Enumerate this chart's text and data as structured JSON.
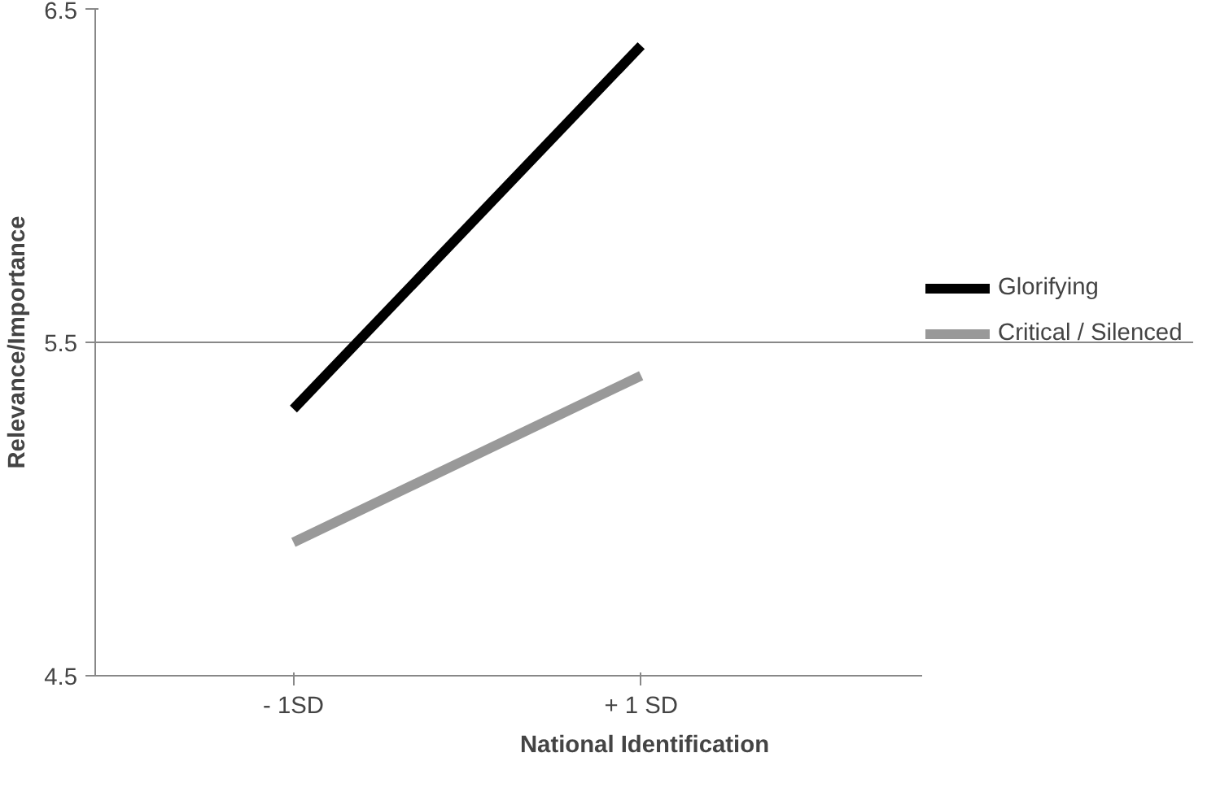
{
  "chart_data": {
    "type": "line",
    "xlabel": "National Identification",
    "ylabel": "Relevance/Importance",
    "categories": [
      "- 1SD",
      "+ 1 SD"
    ],
    "series": [
      {
        "name": "Glorifying",
        "color": "#000000",
        "values": [
          5.3,
          6.39
        ]
      },
      {
        "name": "Critical / Silenced",
        "color": "#999999",
        "values": [
          4.9,
          5.4
        ]
      }
    ],
    "ylim": [
      4.5,
      6.5
    ],
    "yticks": [
      4.5,
      5.5,
      6.5
    ],
    "grid": "y",
    "legend": "right",
    "marker": "none",
    "line_style": "solid"
  }
}
